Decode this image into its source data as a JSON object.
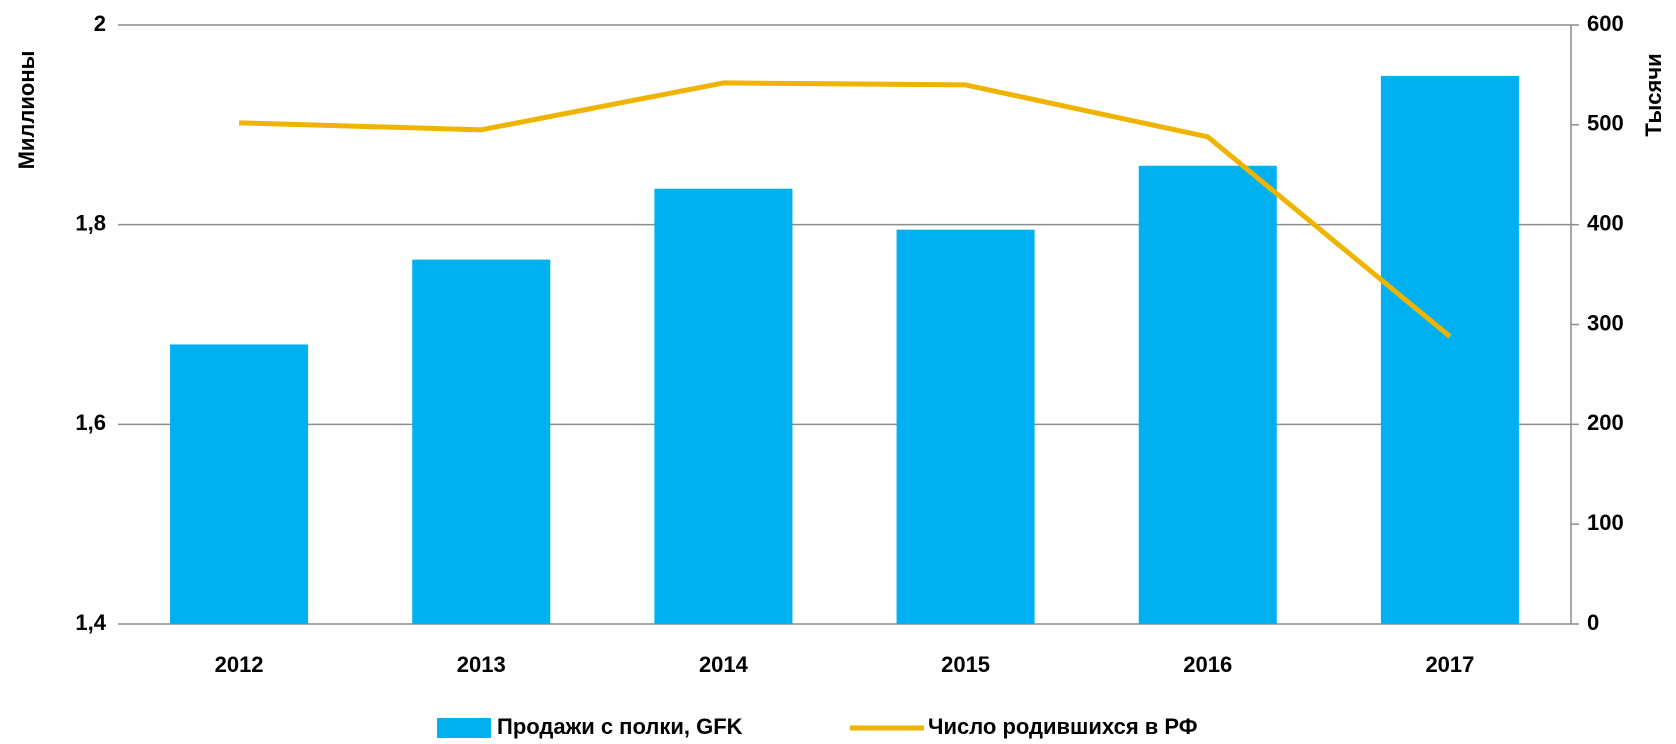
{
  "chart_data": {
    "type": "bar_line",
    "categories": [
      "2012",
      "2013",
      "2014",
      "2015",
      "2016",
      "2017"
    ],
    "series": [
      {
        "name": "Продажи с полки, GFK",
        "type": "bar",
        "color": "#00b0f0",
        "values": [
          1.68,
          1.765,
          1.836,
          1.795,
          1.859,
          1.949
        ]
      },
      {
        "name": "Число родившихся в РФ",
        "type": "line",
        "axis": "y2",
        "color": "#f0b400",
        "values": [
          502,
          495,
          542,
          540,
          488,
          288
        ]
      }
    ],
    "ylabel": "Миллионы",
    "y2label": "Тысячи",
    "ylim": [
      1.4,
      2
    ],
    "yticks": [
      {
        "value": 1.4,
        "label": "1,4"
      },
      {
        "value": 1.6,
        "label": "1,6"
      },
      {
        "value": 1.8,
        "label": "1,8"
      },
      2
    ],
    "y2lim": [
      0,
      600
    ],
    "y2ticks": [
      0,
      100,
      200,
      300,
      400,
      500,
      600
    ],
    "grid": true,
    "legend": "bottom"
  }
}
